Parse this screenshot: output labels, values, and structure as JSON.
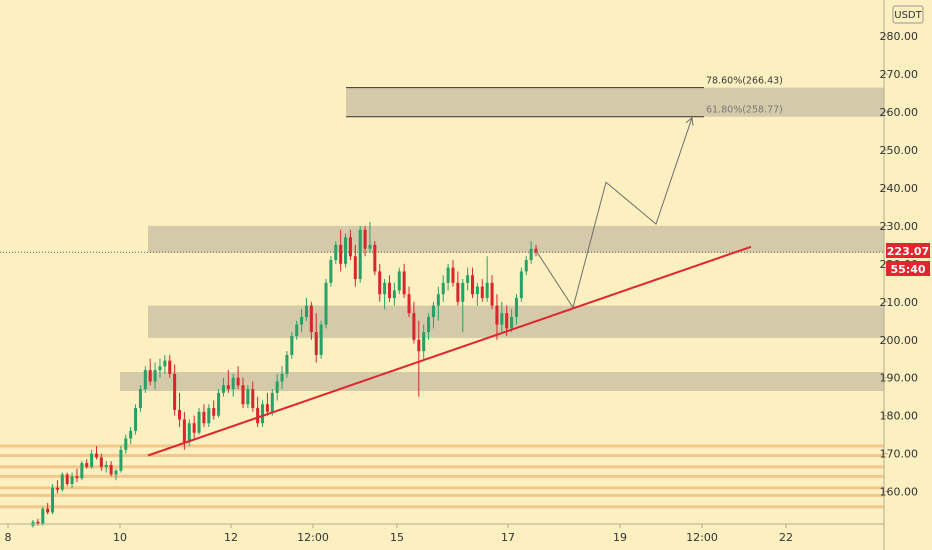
{
  "chart_data": {
    "type": "candlestick",
    "currency": "USDT",
    "last_price": "223.07",
    "countdown": "55:40",
    "y_range": [
      150,
      290
    ],
    "y_ticks": [
      "160.00",
      "170.00",
      "180.00",
      "190.00",
      "200.00",
      "210.00",
      "220.00",
      "230.00",
      "240.00",
      "250.00",
      "260.00",
      "270.00",
      "280.00"
    ],
    "y_tick_values": [
      160,
      170,
      180,
      190,
      200,
      210,
      220,
      230,
      240,
      250,
      260,
      270,
      280
    ],
    "x_ticks": [
      "8",
      "10",
      "12",
      "12:00",
      "15",
      "17",
      "19",
      "12:00",
      "22"
    ],
    "zones": [
      {
        "from": 186.5,
        "to": 191.5
      },
      {
        "from": 200.5,
        "to": 209
      },
      {
        "from": 223,
        "to": 230
      },
      {
        "from": 258.77,
        "to": 266.43
      }
    ],
    "fib_levels": [
      {
        "label": "78.60%(266.43)",
        "value": 266.43
      },
      {
        "label": "61.80%(258.77)",
        "value": 258.77
      }
    ],
    "support_levels": [
      172,
      169.5,
      166.5,
      164,
      161,
      159,
      156
    ],
    "trendline": {
      "from": 169.5,
      "to": 224.5
    },
    "projection_path": [
      223.5,
      208.5,
      241.5,
      230.5,
      258.5
    ],
    "candles": [
      [
        151,
        152.5,
        150.5,
        152
      ],
      [
        152,
        152.8,
        151,
        151.5
      ],
      [
        151.5,
        156,
        151,
        155.5
      ],
      [
        155.5,
        157,
        154,
        154.5
      ],
      [
        154.5,
        162,
        154,
        161
      ],
      [
        161,
        163,
        159.5,
        160.5
      ],
      [
        160.5,
        165,
        160,
        164.5
      ],
      [
        164.5,
        165,
        161.5,
        162
      ],
      [
        162,
        165,
        161,
        164
      ],
      [
        164,
        166,
        162.5,
        163.5
      ],
      [
        163.5,
        168,
        163,
        167.5
      ],
      [
        167.5,
        168.5,
        166,
        166.5
      ],
      [
        166.5,
        171,
        166,
        170
      ],
      [
        170,
        172,
        168.5,
        169
      ],
      [
        169,
        170,
        165.5,
        166.5
      ],
      [
        166.5,
        168,
        165,
        167
      ],
      [
        167,
        168,
        164,
        164.5
      ],
      [
        164.5,
        166,
        163,
        165.5
      ],
      [
        165.5,
        172,
        165,
        171
      ],
      [
        171,
        175,
        170,
        174
      ],
      [
        174,
        177,
        172.5,
        176
      ],
      [
        176,
        183,
        175,
        182
      ],
      [
        182,
        188,
        181,
        187
      ],
      [
        187,
        193,
        186,
        192
      ],
      [
        192,
        195,
        188,
        189
      ],
      [
        189,
        194,
        187,
        192
      ],
      [
        192,
        195,
        190,
        193
      ],
      [
        193,
        196,
        191,
        194.5
      ],
      [
        194.5,
        196,
        190,
        191
      ],
      [
        191,
        193.5,
        180,
        181.5
      ],
      [
        181.5,
        186,
        177,
        179
      ],
      [
        179,
        181,
        171,
        173
      ],
      [
        173,
        179,
        172,
        178
      ],
      [
        178,
        180,
        174,
        175.5
      ],
      [
        175.5,
        182,
        175,
        181
      ],
      [
        181,
        183,
        177,
        178
      ],
      [
        178,
        183,
        177,
        182
      ],
      [
        182,
        184,
        179,
        180
      ],
      [
        180,
        187,
        179.5,
        186
      ],
      [
        186,
        190,
        185,
        188
      ],
      [
        188,
        192,
        186,
        187
      ],
      [
        187,
        191,
        185,
        190
      ],
      [
        190,
        193,
        187,
        188
      ],
      [
        188,
        190,
        182,
        183
      ],
      [
        183,
        188,
        182,
        187
      ],
      [
        187,
        189,
        181,
        182
      ],
      [
        182,
        185,
        177,
        178
      ],
      [
        178,
        184,
        177,
        183
      ],
      [
        183,
        186,
        180,
        181
      ],
      [
        181,
        187,
        180,
        186
      ],
      [
        186,
        191,
        184,
        189
      ],
      [
        189,
        193,
        187,
        191
      ],
      [
        191,
        197,
        190,
        196
      ],
      [
        196,
        202,
        195,
        201
      ],
      [
        201,
        205,
        200,
        204
      ],
      [
        204,
        208,
        202,
        206
      ],
      [
        206,
        211,
        205,
        209
      ],
      [
        209,
        210,
        200,
        202
      ],
      [
        202,
        207,
        194,
        196
      ],
      [
        196,
        205,
        195,
        204
      ],
      [
        204,
        216,
        203,
        215
      ],
      [
        215,
        222,
        214,
        221
      ],
      [
        221,
        226,
        220,
        225
      ],
      [
        225,
        229,
        218,
        220
      ],
      [
        220,
        228,
        219,
        227
      ],
      [
        227,
        229,
        221,
        222
      ],
      [
        222,
        225,
        214,
        216
      ],
      [
        216,
        230,
        215,
        229
      ],
      [
        229,
        230,
        222,
        224
      ],
      [
        224,
        231,
        223,
        225
      ],
      [
        225,
        226,
        217,
        218
      ],
      [
        218,
        220,
        210,
        212
      ],
      [
        212,
        216,
        208,
        215
      ],
      [
        215,
        217,
        210,
        211
      ],
      [
        211,
        215,
        209,
        213
      ],
      [
        213,
        219,
        212,
        218
      ],
      [
        218,
        220,
        211,
        212
      ],
      [
        212,
        214,
        206,
        207
      ],
      [
        207,
        210,
        199,
        200
      ],
      [
        200,
        205,
        185,
        197
      ],
      [
        197,
        204,
        195,
        202
      ],
      [
        202,
        207,
        200,
        206
      ],
      [
        206,
        210,
        203,
        209
      ],
      [
        209,
        214,
        205,
        212
      ],
      [
        212,
        217,
        210,
        215
      ],
      [
        215,
        220,
        213,
        219
      ],
      [
        219,
        221,
        214,
        215
      ],
      [
        215,
        218,
        209,
        210
      ],
      [
        210,
        216,
        202,
        215
      ],
      [
        215,
        219,
        213,
        217
      ],
      [
        217,
        219,
        211,
        212
      ],
      [
        212,
        215,
        209,
        214
      ],
      [
        214,
        216,
        210,
        211
      ],
      [
        211,
        222,
        210,
        215
      ],
      [
        215,
        217,
        208,
        209
      ],
      [
        209,
        212,
        200,
        204
      ],
      [
        204,
        210,
        202,
        207
      ],
      [
        207,
        209,
        201,
        203
      ],
      [
        203,
        208,
        202,
        206
      ],
      [
        206,
        212,
        204,
        211
      ],
      [
        211,
        219,
        210,
        218
      ],
      [
        218,
        222,
        217,
        221
      ],
      [
        221,
        226,
        220,
        224
      ],
      [
        224,
        225,
        222,
        223
      ]
    ]
  }
}
